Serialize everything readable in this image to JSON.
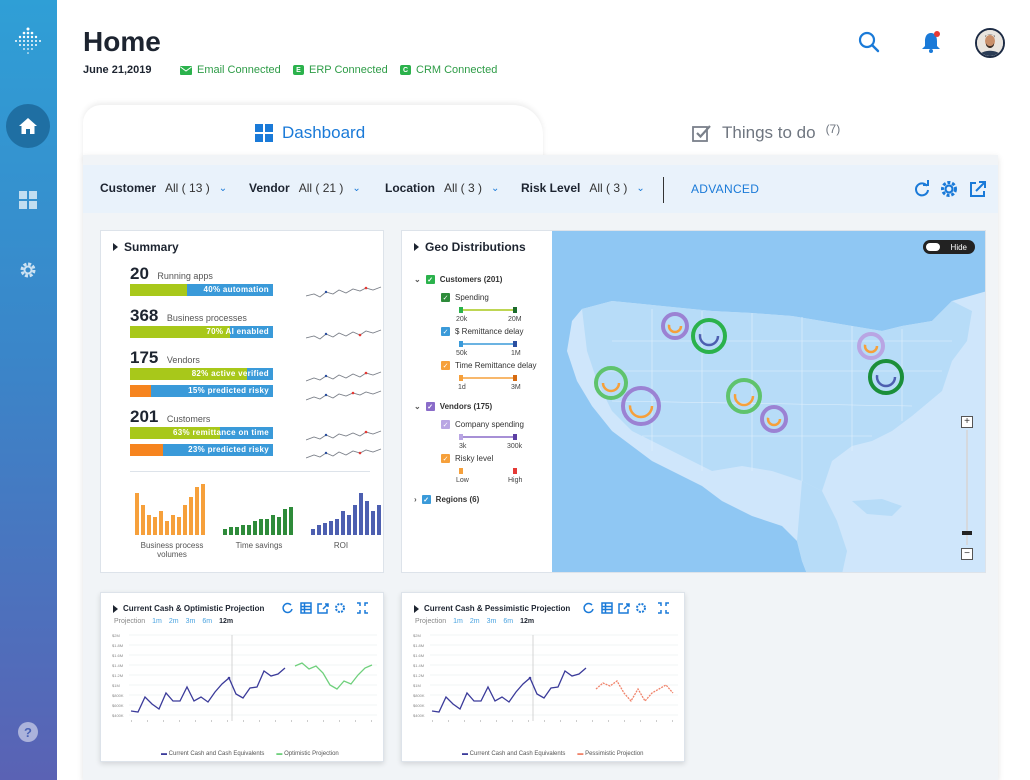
{
  "header": {
    "title": "Home",
    "date": "June 21,2019",
    "connections": [
      {
        "label": "Email Connected",
        "icon": "email-icon"
      },
      {
        "label": "ERP Connected",
        "icon_text": "E"
      },
      {
        "label": "CRM Connected",
        "icon_text": "C"
      }
    ]
  },
  "tabs": {
    "dashboard": "Dashboard",
    "todo": "Things to do",
    "todo_count": "(7)"
  },
  "filters": {
    "customer": {
      "label": "Customer",
      "value": "All ( 13 )"
    },
    "vendor": {
      "label": "Vendor",
      "value": "All ( 21 )"
    },
    "location": {
      "label": "Location",
      "value": "All ( 3 )"
    },
    "risk": {
      "label": "Risk Level",
      "value": "All ( 3 )"
    },
    "advanced": "ADVANCED"
  },
  "summary": {
    "title": "Summary",
    "metrics": [
      {
        "num": "20",
        "caption": "Running apps",
        "bars": [
          {
            "text": "40% automation",
            "pct": 40
          }
        ]
      },
      {
        "num": "368",
        "caption": "Business processes",
        "bars": [
          {
            "text": "70% AI enabled",
            "pct": 70
          }
        ]
      },
      {
        "num": "175",
        "caption": "Vendors",
        "bars": [
          {
            "text": "82% active verified",
            "pct": 82
          },
          {
            "text": "15% predicted risky",
            "pct": 15
          }
        ]
      },
      {
        "num": "201",
        "caption": "Customers",
        "bars": [
          {
            "text": "63% remittance on time",
            "pct": 63
          },
          {
            "text": "23% predicted risky",
            "pct": 23
          }
        ]
      }
    ],
    "mini_charts": [
      "Business process volumes",
      "Time savings",
      "ROI"
    ]
  },
  "geo": {
    "title": "Geo Distributions",
    "hide_label": "Hide",
    "customers": {
      "label": "Customers (201)",
      "color": "#2bb24c"
    },
    "spending": {
      "label": "Spending",
      "min": "20k",
      "max": "20M"
    },
    "remittance": {
      "label": "$ Remittance delay",
      "min": "50k",
      "max": "1M"
    },
    "time_remittance": {
      "label": "Time Remittance delay",
      "min": "1d",
      "max": "3M"
    },
    "vendors": {
      "label": "Vendors (175)",
      "color": "#8a6cc9"
    },
    "company_spending": {
      "label": "Company spending",
      "min": "3k",
      "max": "300k"
    },
    "risky": {
      "label": "Risky level",
      "min": "Low",
      "max": "High"
    },
    "regions": {
      "label": "Regions (6)"
    }
  },
  "projections": [
    {
      "title": "Current Cash & Optimistic Projection",
      "tabs": [
        "Projection",
        "1m",
        "2m",
        "3m",
        "6m",
        "12m"
      ],
      "legend": [
        "Current Cash and Cash Equivalents",
        "Optimistic Projection"
      ],
      "proj_color": "#6fd07c"
    },
    {
      "title": "Current Cash & Pessimistic Projection",
      "tabs": [
        "Projection",
        "1m",
        "2m",
        "3m",
        "6m",
        "12m"
      ],
      "legend": [
        "Current Cash and Cash Equivalents",
        "Pessimistic Projection"
      ],
      "proj_color": "#f0836a"
    }
  ],
  "colors": {
    "accent": "#1a7ad8",
    "lime": "#a8c81a",
    "blue": "#3a9ad9",
    "orange": "#f6841f"
  }
}
